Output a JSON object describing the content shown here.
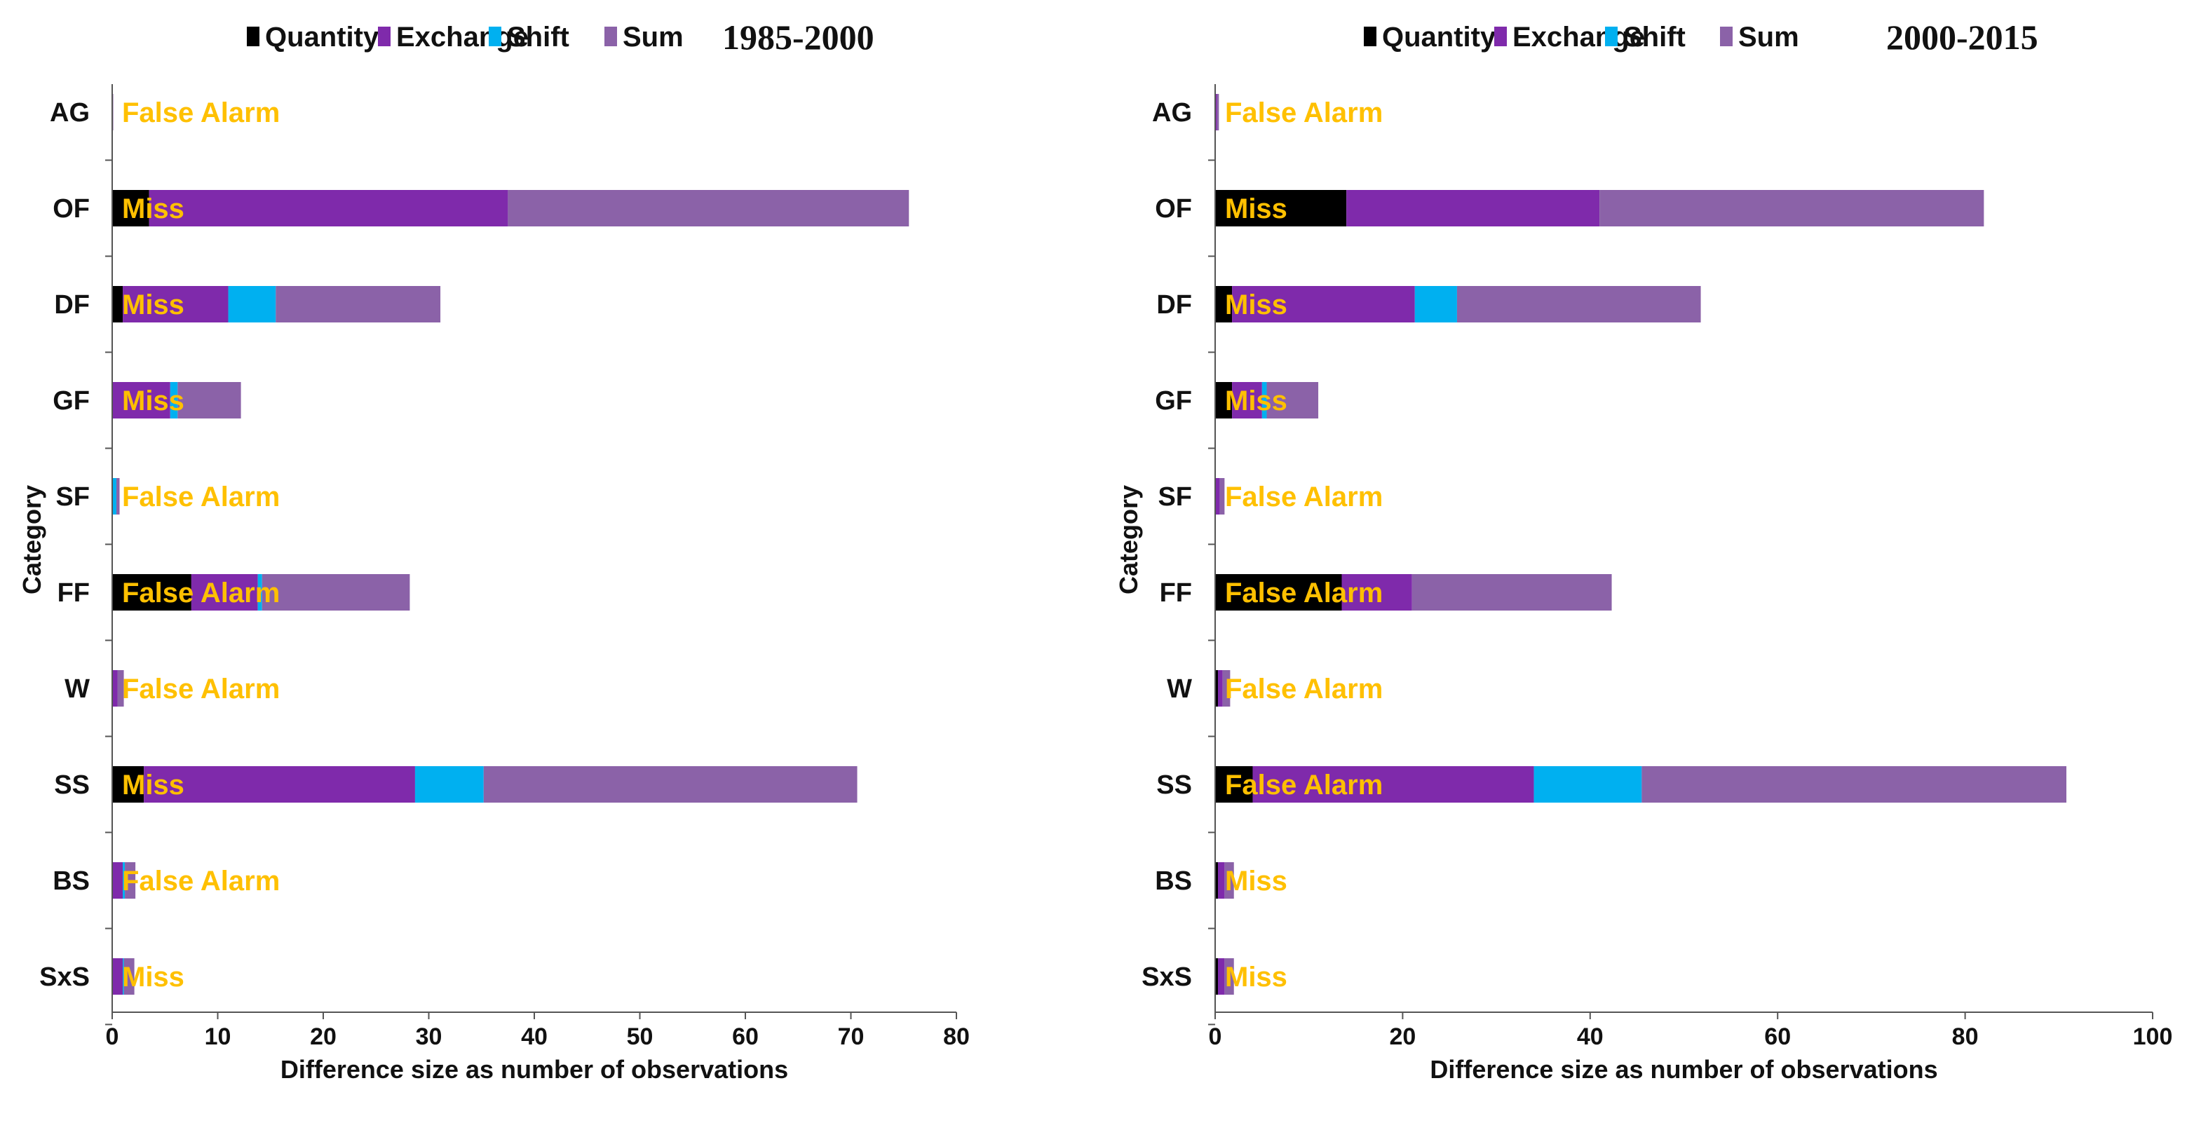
{
  "chart_data": [
    {
      "type": "bar",
      "orientation": "horizontal",
      "stacked": true,
      "title": "1985-2000",
      "xlabel": "Difference size as number of observations",
      "ylabel": "Category",
      "xlim": [
        0,
        80
      ],
      "xticks": [
        0,
        10,
        20,
        30,
        40,
        50,
        60,
        70,
        80
      ],
      "categories": [
        "AG",
        "OF",
        "DF",
        "GF",
        "SF",
        "FF",
        "W",
        "SS",
        "BS",
        "SxS"
      ],
      "series": [
        {
          "name": "Quantity",
          "color": "#000000",
          "values": [
            0,
            3.5,
            1,
            0,
            0,
            7.5,
            0,
            3,
            0,
            0
          ]
        },
        {
          "name": "Exchange",
          "color": "#7f2aab",
          "values": [
            0,
            34,
            10,
            5.5,
            0,
            6.3,
            0.5,
            25.7,
            1,
            1
          ]
        },
        {
          "name": "Shift",
          "color": "#00b0f0",
          "values": [
            0,
            0,
            4.5,
            0.7,
            0.4,
            0.4,
            0,
            6.5,
            0.2,
            0.1
          ]
        },
        {
          "name": "Sum",
          "color": "#8b62a8",
          "values": [
            0.1,
            38,
            15.6,
            6,
            0.3,
            14,
            0.6,
            35.4,
            1,
            1
          ]
        }
      ],
      "bar_labels": [
        "False Alarm",
        "Miss",
        "Miss",
        "Miss",
        "False Alarm",
        "False Alarm",
        "False Alarm",
        "Miss",
        "False Alarm",
        "Miss"
      ],
      "label_color": "#ffc000"
    },
    {
      "type": "bar",
      "orientation": "horizontal",
      "stacked": true,
      "title": "2000-2015",
      "xlabel": "Difference size as number of observations",
      "ylabel": "Category",
      "xlim": [
        0,
        100
      ],
      "xticks": [
        0,
        20,
        40,
        60,
        80,
        100
      ],
      "categories": [
        "AG",
        "OF",
        "DF",
        "GF",
        "SF",
        "FF",
        "W",
        "SS",
        "BS",
        "SxS"
      ],
      "series": [
        {
          "name": "Quantity",
          "color": "#000000",
          "values": [
            0,
            14,
            1.8,
            1.8,
            0,
            13.5,
            0.3,
            4,
            0.3,
            0.3
          ]
        },
        {
          "name": "Exchange",
          "color": "#7f2aab",
          "values": [
            0.2,
            27,
            19.5,
            3.2,
            0.5,
            7.5,
            0.5,
            30,
            0.7,
            0.7
          ]
        },
        {
          "name": "Shift",
          "color": "#00b0f0",
          "values": [
            0,
            0,
            4.5,
            0.5,
            0,
            0,
            0,
            11.5,
            0,
            0
          ]
        },
        {
          "name": "Sum",
          "color": "#8b62a8",
          "values": [
            0.2,
            41,
            26,
            5.5,
            0.5,
            21.3,
            0.8,
            45.3,
            1,
            1
          ]
        }
      ],
      "bar_labels": [
        "False Alarm",
        "Miss",
        "Miss",
        "Miss",
        "False Alarm",
        "False Alarm",
        "False Alarm",
        "False Alarm",
        "Miss",
        "Miss"
      ],
      "label_color": "#ffc000"
    }
  ]
}
